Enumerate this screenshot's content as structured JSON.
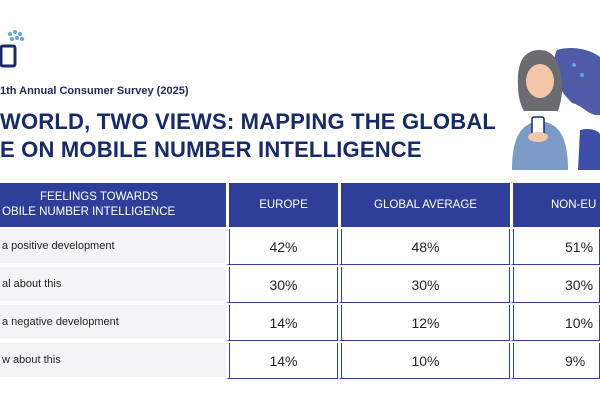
{
  "header": {
    "subtitle": "1th Annual Consumer Survey (2025)",
    "title_line1": "WORLD, TWO VIEWS: MAPPING THE GLOBAL",
    "title_line2": "E ON MOBILE NUMBER INTELLIGENCE"
  },
  "colors": {
    "header_bg": "#2f3f99",
    "title": "#172a6b",
    "label_bg": "#f4f4f6",
    "logo_accent": "#5aa9e6"
  },
  "table": {
    "header": {
      "col0_line1": "FEELINGS TOWARDS",
      "col0_line2": "OBILE NUMBER INTELLIGENCE",
      "col1": "EUROPE",
      "col2": "GLOBAL AVERAGE",
      "col3": "NON-EU"
    },
    "rows": [
      {
        "label": "a positive development",
        "europe": "42%",
        "global": "48%",
        "noneu": "51%"
      },
      {
        "label": "al about this",
        "europe": "30%",
        "global": "30%",
        "noneu": "30%"
      },
      {
        "label": "a negative development",
        "europe": "14%",
        "global": "12%",
        "noneu": "10%"
      },
      {
        "label": "w about this",
        "europe": "14%",
        "global": "10%",
        "noneu": "9%"
      }
    ]
  }
}
